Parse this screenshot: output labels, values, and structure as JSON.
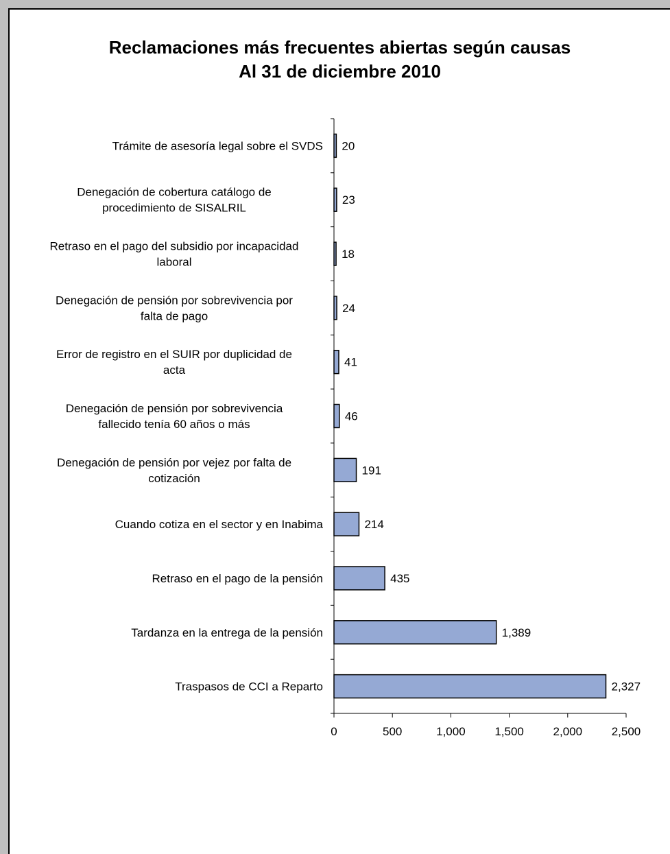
{
  "chart_data": {
    "type": "bar",
    "orientation": "horizontal",
    "title": [
      "Reclamaciones más frecuentes  abiertas  según  causas",
      "Al 31 de diciembre  2010"
    ],
    "categories": [
      [
        "Trámite de asesoría legal sobre el SVDS"
      ],
      [
        "Denegación de cobertura catálogo de",
        "procedimiento  de SISALRIL"
      ],
      [
        "Retraso en el pago del subsidio por incapacidad",
        "laboral"
      ],
      [
        "Denegación de pensión por sobrevivencia por",
        "falta de pago"
      ],
      [
        "Error de registro en el SUIR por duplicidad de",
        "acta"
      ],
      [
        "Denegación de pensión por sobrevivencia",
        "fallecido tenía 60 años o más"
      ],
      [
        "Denegación  de pensión por vejez por falta de",
        "cotización"
      ],
      [
        "Cuando cotiza en el sector y en Inabima"
      ],
      [
        "Retraso en el pago de la pensión"
      ],
      [
        "Tardanza en la entrega de  la pensión"
      ],
      [
        "Traspasos de CCI a Reparto"
      ]
    ],
    "values": [
      20,
      23,
      18,
      24,
      41,
      46,
      191,
      214,
      435,
      1389,
      2327
    ],
    "value_labels": [
      "20",
      "23",
      "18",
      "24",
      "41",
      "46",
      "191",
      "214",
      "435",
      "1,389",
      "2,327"
    ],
    "xlim": [
      0,
      2500
    ],
    "xticks": [
      0,
      500,
      1000,
      1500,
      2000,
      2500
    ],
    "xtick_labels": [
      "0",
      "500",
      "1,000",
      "1,500",
      "2,000",
      "2,500"
    ],
    "grid": false,
    "legend": "none",
    "bar_color": "#95a9d4",
    "bar_edge_color": "#000000"
  }
}
